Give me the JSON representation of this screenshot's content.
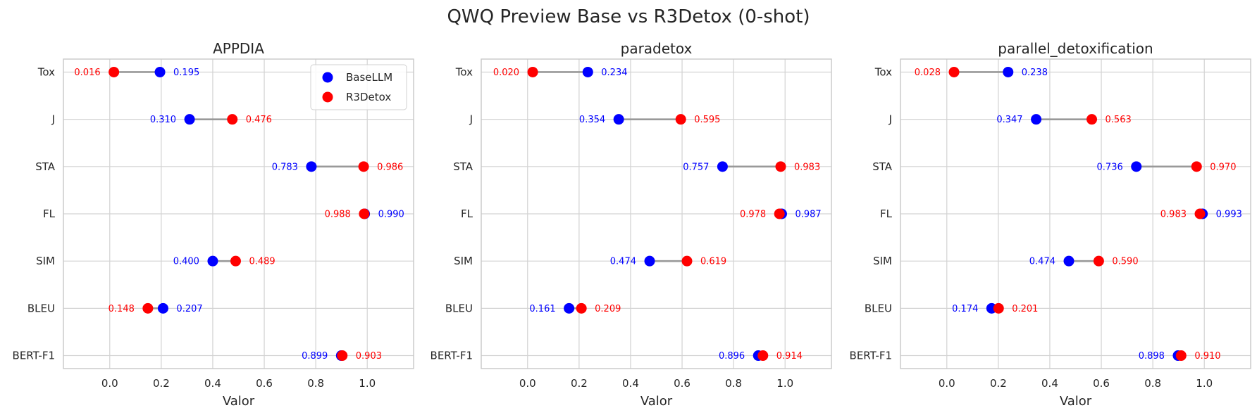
{
  "title": "QWQ Preview Base vs R3Detox (0-shot)",
  "colors": {
    "base": "#0000ff",
    "r3": "#ff0000",
    "connector": "#999999",
    "grid": "#d3d3d3",
    "frame": "#c8c8c8"
  },
  "chart_data": [
    {
      "type": "scatter",
      "title": "APPDIA",
      "xlabel": "Valor",
      "xlim": [
        -0.18,
        1.18
      ],
      "xticks": [
        "0.0",
        "0.2",
        "0.4",
        "0.6",
        "0.8",
        "1.0"
      ],
      "categories": [
        "Tox",
        "J",
        "STA",
        "FL",
        "SIM",
        "BLEU",
        "BERT-F1"
      ],
      "series": [
        {
          "name": "BaseLLM",
          "values": [
            0.195,
            0.31,
            0.783,
            0.99,
            0.4,
            0.207,
            0.899
          ],
          "labels": [
            "0.195",
            "0.310",
            "0.783",
            "0.990",
            "0.400",
            "0.207",
            "0.899"
          ]
        },
        {
          "name": "R3Detox",
          "values": [
            0.016,
            0.476,
            0.986,
            0.988,
            0.489,
            0.148,
            0.903
          ],
          "labels": [
            "0.016",
            "0.476",
            "0.986",
            "0.988",
            "0.489",
            "0.148",
            "0.903"
          ]
        }
      ],
      "legend": "top-right",
      "grid": true
    },
    {
      "type": "scatter",
      "title": "paradetox",
      "xlabel": "Valor",
      "xlim": [
        -0.18,
        1.18
      ],
      "xticks": [
        "0.0",
        "0.2",
        "0.4",
        "0.6",
        "0.8",
        "1.0"
      ],
      "categories": [
        "Tox",
        "J",
        "STA",
        "FL",
        "SIM",
        "BLEU",
        "BERT-F1"
      ],
      "series": [
        {
          "name": "BaseLLM",
          "values": [
            0.234,
            0.354,
            0.757,
            0.987,
            0.474,
            0.161,
            0.896
          ],
          "labels": [
            "0.234",
            "0.354",
            "0.757",
            "0.987",
            "0.474",
            "0.161",
            "0.896"
          ]
        },
        {
          "name": "R3Detox",
          "values": [
            0.02,
            0.595,
            0.983,
            0.978,
            0.619,
            0.209,
            0.914
          ],
          "labels": [
            "0.020",
            "0.595",
            "0.983",
            "0.978",
            "0.619",
            "0.209",
            "0.914"
          ]
        }
      ],
      "grid": true
    },
    {
      "type": "scatter",
      "title": "parallel_detoxification",
      "xlabel": "Valor",
      "xlim": [
        -0.18,
        1.18
      ],
      "xticks": [
        "0.0",
        "0.2",
        "0.4",
        "0.6",
        "0.8",
        "1.0"
      ],
      "categories": [
        "Tox",
        "J",
        "STA",
        "FL",
        "SIM",
        "BLEU",
        "BERT-F1"
      ],
      "series": [
        {
          "name": "BaseLLM",
          "values": [
            0.238,
            0.347,
            0.736,
            0.993,
            0.474,
            0.174,
            0.898
          ],
          "labels": [
            "0.238",
            "0.347",
            "0.736",
            "0.993",
            "0.474",
            "0.174",
            "0.898"
          ]
        },
        {
          "name": "R3Detox",
          "values": [
            0.028,
            0.563,
            0.97,
            0.983,
            0.59,
            0.201,
            0.91
          ],
          "labels": [
            "0.028",
            "0.563",
            "0.970",
            "0.983",
            "0.590",
            "0.201",
            "0.910"
          ]
        }
      ],
      "grid": true
    }
  ]
}
